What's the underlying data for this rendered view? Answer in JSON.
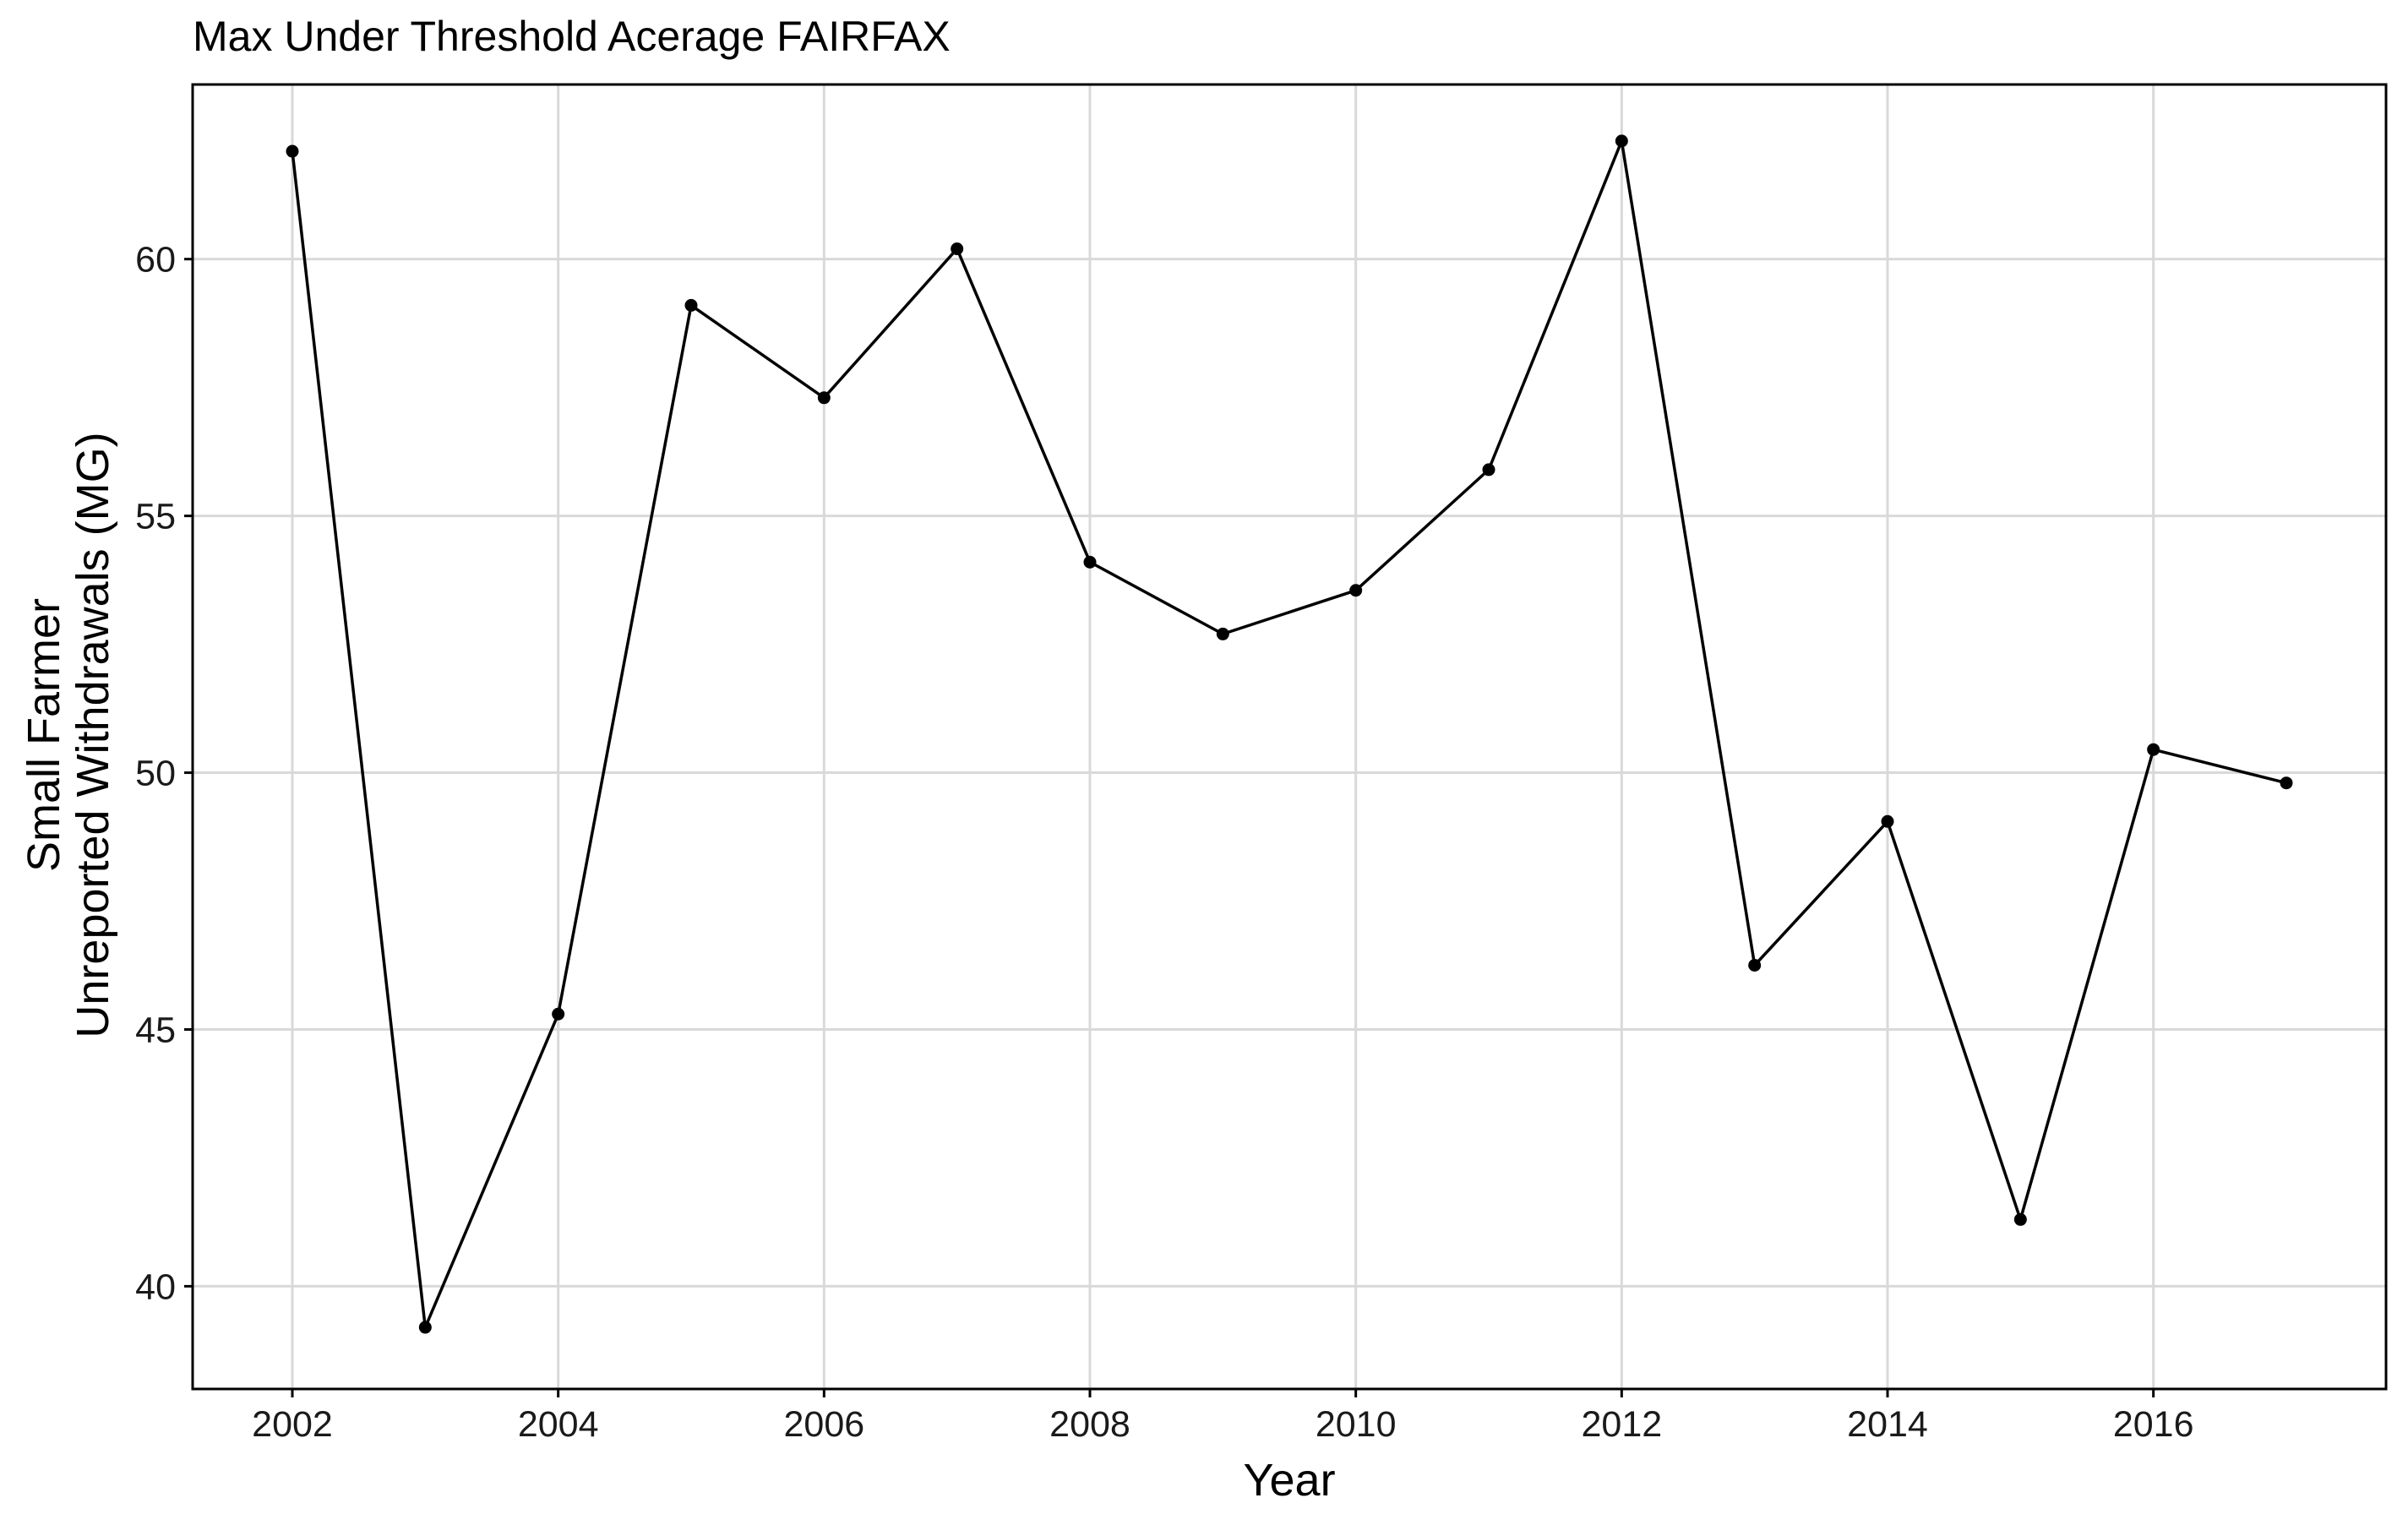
{
  "chart_data": {
    "type": "line",
    "title": "Max Under Threshold Acerage FAIRFAX",
    "xlabel": "Year",
    "ylabel": [
      "Small Farmer",
      "Unreported Withdrawals (MG)"
    ],
    "xlim": [
      2001.25,
      2017.75
    ],
    "ylim": [
      38.0,
      63.4
    ],
    "xticks": [
      2002,
      2004,
      2006,
      2008,
      2010,
      2012,
      2014,
      2016
    ],
    "yticks": [
      40,
      45,
      50,
      55,
      60
    ],
    "grid": true,
    "legend": "none",
    "x": [
      2002,
      2003,
      2004,
      2005,
      2006,
      2007,
      2008,
      2009,
      2010,
      2011,
      2012,
      2013,
      2014,
      2015,
      2016,
      2017
    ],
    "values": [
      62.1,
      39.2,
      45.3,
      59.1,
      57.3,
      60.2,
      54.1,
      52.7,
      53.55,
      55.9,
      62.3,
      46.25,
      49.05,
      41.3,
      50.45,
      49.8
    ],
    "colors": {
      "line": "#000000",
      "grid": "#d9d9d9",
      "background": "#ffffff"
    }
  }
}
